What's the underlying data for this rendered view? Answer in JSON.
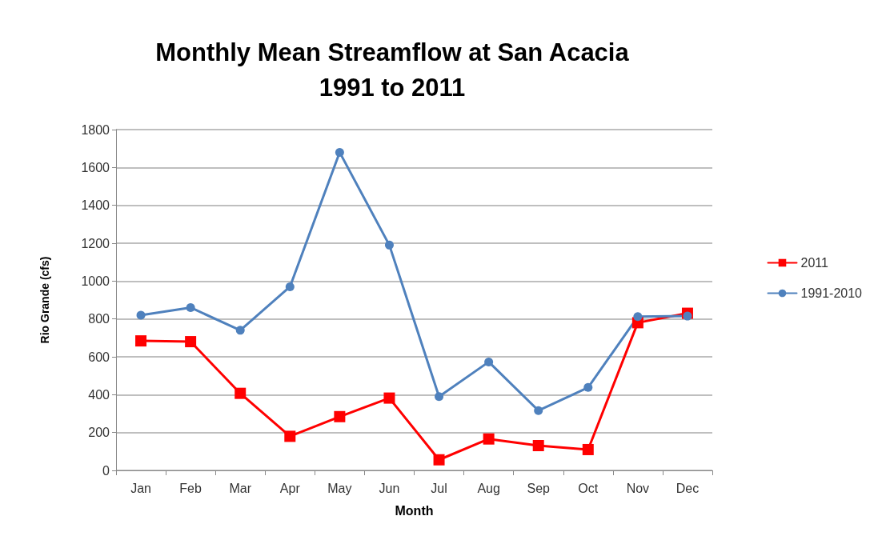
{
  "chart_data": {
    "type": "line",
    "title": "Monthly Mean Streamflow at San Acacia\n1991 to 2011",
    "xlabel": "Month",
    "ylabel": "Rio Grande (cfs)",
    "categories": [
      "Jan",
      "Feb",
      "Mar",
      "Apr",
      "May",
      "Jun",
      "Jul",
      "Aug",
      "Sep",
      "Oct",
      "Nov",
      "Dec"
    ],
    "series": [
      {
        "name": "2011",
        "color": "#ff0000",
        "marker": "square",
        "values": [
          684,
          680,
          407,
          180,
          284,
          382,
          56,
          166,
          131,
          110,
          780,
          830
        ]
      },
      {
        "name": "1991-2010",
        "color": "#4f81bd",
        "marker": "circle",
        "values": [
          820,
          860,
          740,
          970,
          1680,
          1190,
          390,
          573,
          316,
          438,
          812,
          815
        ]
      }
    ],
    "ylim": [
      0,
      1800
    ],
    "yticks": [
      0,
      200,
      400,
      600,
      800,
      1000,
      1200,
      1400,
      1600,
      1800
    ],
    "grid": "y",
    "legend": "right",
    "line_style": "solid"
  }
}
